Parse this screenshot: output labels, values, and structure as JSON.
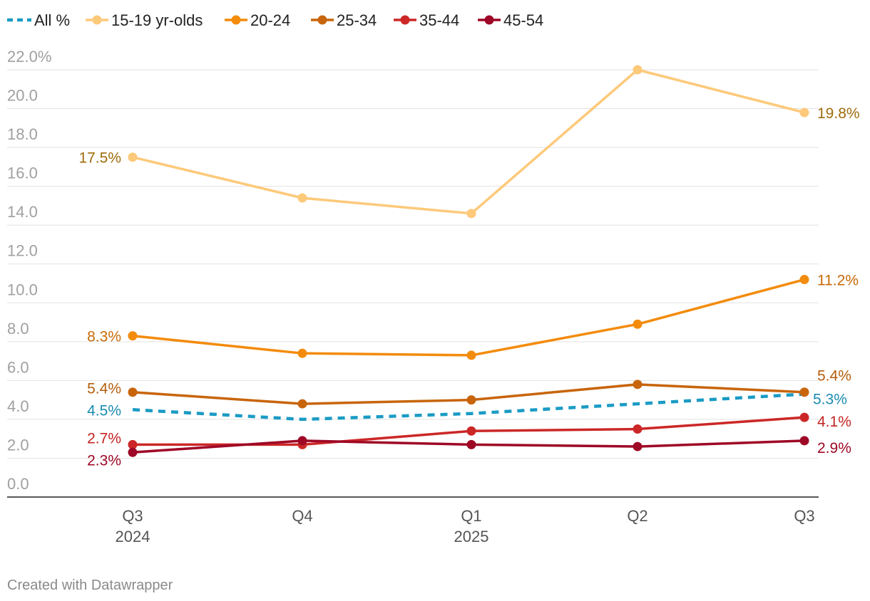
{
  "credit": "Created with Datawrapper",
  "chart_data": {
    "type": "line",
    "title": "",
    "xlabel": "",
    "ylabel": "",
    "x": [
      {
        "quarter": "Q3",
        "year": "2024"
      },
      {
        "quarter": "Q4",
        "year": ""
      },
      {
        "quarter": "Q1",
        "year": "2025"
      },
      {
        "quarter": "Q2",
        "year": ""
      },
      {
        "quarter": "Q3",
        "year": ""
      }
    ],
    "ylim": [
      0,
      22
    ],
    "yticks": [
      {
        "value": 22,
        "label": "22.0%"
      },
      {
        "value": 20,
        "label": "20.0"
      },
      {
        "value": 18,
        "label": "18.0"
      },
      {
        "value": 16,
        "label": "16.0"
      },
      {
        "value": 14,
        "label": "14.0"
      },
      {
        "value": 12,
        "label": "12.0"
      },
      {
        "value": 10,
        "label": "10.0"
      },
      {
        "value": 8,
        "label": "8.0"
      },
      {
        "value": 6,
        "label": "6.0"
      },
      {
        "value": 4,
        "label": "4.0"
      },
      {
        "value": 2,
        "label": "2.0"
      },
      {
        "value": 0,
        "label": "0.0"
      }
    ],
    "grid": true,
    "legend_position": "top-left",
    "series": [
      {
        "name": "All %",
        "color": "#1a9bc4",
        "dashed": true,
        "markers": false,
        "label_color": "#1a8cb0",
        "values": [
          4.5,
          4.0,
          4.3,
          4.8,
          5.3
        ],
        "start_label": "4.5%",
        "end_label": "5.3%"
      },
      {
        "name": "15-19 yr-olds",
        "color": "#fdc97a",
        "dashed": false,
        "markers": true,
        "label_color": "#a06c0c",
        "values": [
          17.5,
          15.4,
          14.6,
          22.0,
          19.8
        ],
        "start_label": "17.5%",
        "end_label": "19.8%"
      },
      {
        "name": "20-24",
        "color": "#f38b0c",
        "dashed": false,
        "markers": true,
        "label_color": "#c66a08",
        "values": [
          8.3,
          7.4,
          7.3,
          8.9,
          11.2
        ],
        "start_label": "8.3%",
        "end_label": "11.2%"
      },
      {
        "name": "25-34",
        "color": "#c8650c",
        "dashed": false,
        "markers": true,
        "label_color": "#b55e0c",
        "values": [
          5.4,
          4.8,
          5.0,
          5.8,
          5.4
        ],
        "start_label": "5.4%",
        "end_label": "5.4%"
      },
      {
        "name": "35-44",
        "color": "#cc2727",
        "dashed": false,
        "markers": true,
        "label_color": "#c42424",
        "values": [
          2.7,
          2.7,
          3.4,
          3.5,
          4.1
        ],
        "start_label": "2.7%",
        "end_label": "4.1%"
      },
      {
        "name": "45-54",
        "color": "#9e0826",
        "dashed": false,
        "markers": true,
        "label_color": "#9e0826",
        "values": [
          2.3,
          2.9,
          2.7,
          2.6,
          2.9
        ],
        "start_label": "2.3%",
        "end_label": "2.9%"
      }
    ]
  }
}
